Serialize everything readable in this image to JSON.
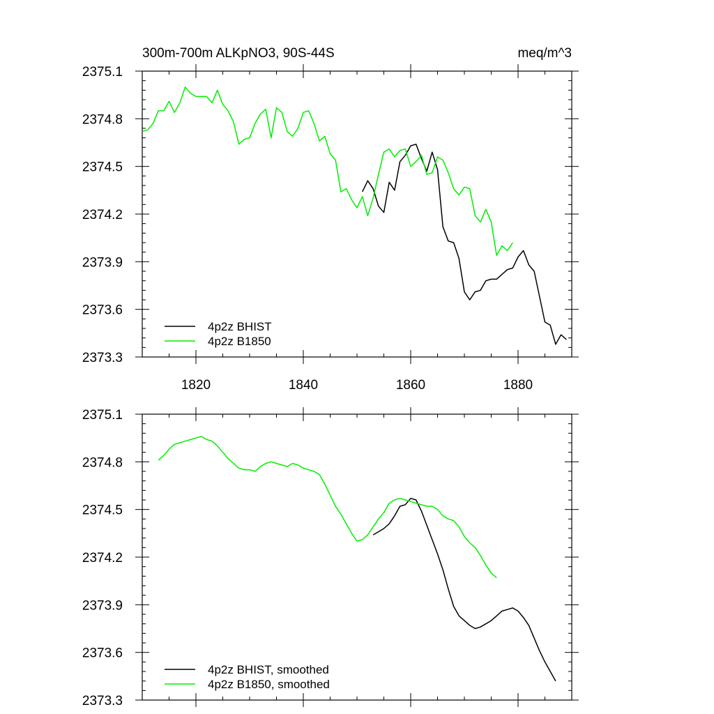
{
  "chart_data": [
    {
      "type": "line",
      "title_left": "300m-700m ALKpNO3, 90S-44S",
      "title_right": "meq/m^3",
      "xlabel": "",
      "ylabel": "",
      "xlim": [
        1810,
        1890
      ],
      "ylim": [
        2373.3,
        2375.1
      ],
      "xticks": [
        1820,
        1840,
        1860,
        1880
      ],
      "xtick_labels": [
        "1820",
        "1840",
        "1860",
        "1880"
      ],
      "yticks": [
        2373.3,
        2373.6,
        2373.9,
        2374.2,
        2374.5,
        2374.8,
        2375.1
      ],
      "ytick_labels": [
        "2373.3",
        "2373.6",
        "2373.9",
        "2374.2",
        "2374.5",
        "2374.8",
        "2375.1"
      ],
      "show_xtick_labels": true,
      "legend_position": "bottom-left",
      "grid": false,
      "series": [
        {
          "name": "4p2z BHIST",
          "color": "#000000",
          "x": [
            1851,
            1852,
            1853,
            1854,
            1855,
            1856,
            1857,
            1858,
            1859,
            1860,
            1861,
            1862,
            1863,
            1864,
            1865,
            1866,
            1867,
            1868,
            1869,
            1870,
            1871,
            1872,
            1873,
            1874,
            1875,
            1876,
            1877,
            1878,
            1879,
            1880,
            1881,
            1882,
            1883,
            1884,
            1885,
            1886,
            1887,
            1888,
            1889
          ],
          "y": [
            2374.34,
            2374.41,
            2374.36,
            2374.25,
            2374.21,
            2374.4,
            2374.35,
            2374.53,
            2374.57,
            2374.63,
            2374.64,
            2374.55,
            2374.47,
            2374.59,
            2374.48,
            2374.12,
            2374.03,
            2374.02,
            2373.92,
            2373.71,
            2373.66,
            2373.71,
            2373.72,
            2373.78,
            2373.79,
            2373.79,
            2373.82,
            2373.85,
            2373.86,
            2373.93,
            2373.97,
            2373.88,
            2373.84,
            2373.68,
            2373.52,
            2373.5,
            2373.38,
            2373.44,
            2373.41
          ]
        },
        {
          "name": "4p2z B1850",
          "color": "#00ee00",
          "x": [
            1810,
            1811,
            1812,
            1813,
            1814,
            1815,
            1816,
            1817,
            1818,
            1819,
            1820,
            1821,
            1822,
            1823,
            1824,
            1825,
            1826,
            1827,
            1828,
            1829,
            1830,
            1831,
            1832,
            1833,
            1834,
            1835,
            1836,
            1837,
            1838,
            1839,
            1840,
            1841,
            1842,
            1843,
            1844,
            1845,
            1846,
            1847,
            1848,
            1849,
            1850,
            1851,
            1852,
            1853,
            1854,
            1855,
            1856,
            1857,
            1858,
            1859,
            1860,
            1861,
            1862,
            1863,
            1864,
            1865,
            1866,
            1867,
            1868,
            1869,
            1870,
            1871,
            1872,
            1873,
            1874,
            1875,
            1876,
            1877,
            1878,
            1879
          ],
          "y": [
            2374.72,
            2374.73,
            2374.77,
            2374.85,
            2374.85,
            2374.91,
            2374.84,
            2374.9,
            2375.0,
            2374.96,
            2374.94,
            2374.94,
            2374.94,
            2374.9,
            2374.98,
            2374.89,
            2374.85,
            2374.78,
            2374.64,
            2374.67,
            2374.68,
            2374.77,
            2374.83,
            2374.86,
            2374.68,
            2374.87,
            2374.84,
            2374.72,
            2374.69,
            2374.74,
            2374.84,
            2374.85,
            2374.77,
            2374.66,
            2374.69,
            2374.58,
            2374.54,
            2374.34,
            2374.36,
            2374.29,
            2374.24,
            2374.31,
            2374.19,
            2374.3,
            2374.45,
            2374.59,
            2374.61,
            2374.56,
            2374.6,
            2374.61,
            2374.5,
            2374.53,
            2374.57,
            2374.45,
            2374.46,
            2374.56,
            2374.54,
            2374.46,
            2374.36,
            2374.32,
            2374.37,
            2374.36,
            2374.19,
            2374.15,
            2374.23,
            2374.15,
            2373.94,
            2374.0,
            2373.97,
            2374.02
          ]
        }
      ]
    },
    {
      "type": "line",
      "title_left": "",
      "title_right": "",
      "xlabel": "",
      "ylabel": "",
      "xlim": [
        1810,
        1890
      ],
      "ylim": [
        2373.3,
        2375.1
      ],
      "xticks": [
        1820,
        1840,
        1860,
        1880
      ],
      "xtick_labels": [],
      "yticks": [
        2373.3,
        2373.6,
        2373.9,
        2374.2,
        2374.5,
        2374.8,
        2375.1
      ],
      "ytick_labels": [
        "2373.3",
        "2373.6",
        "2373.9",
        "2374.2",
        "2374.5",
        "2374.8",
        "2375.1"
      ],
      "show_xtick_labels": false,
      "legend_position": "bottom-left",
      "grid": false,
      "series": [
        {
          "name": "4p2z BHIST, smoothed",
          "color": "#000000",
          "x": [
            1853,
            1854,
            1855,
            1856,
            1857,
            1858,
            1859,
            1860,
            1861,
            1862,
            1863,
            1864,
            1865,
            1866,
            1867,
            1868,
            1869,
            1870,
            1871,
            1872,
            1873,
            1874,
            1875,
            1876,
            1877,
            1878,
            1879,
            1880,
            1881,
            1882,
            1883,
            1884,
            1885,
            1886,
            1887
          ],
          "y": [
            2374.34,
            2374.36,
            2374.38,
            2374.41,
            2374.46,
            2374.52,
            2374.53,
            2374.57,
            2374.56,
            2374.49,
            2374.4,
            2374.31,
            2374.22,
            2374.12,
            2374.0,
            2373.89,
            2373.83,
            2373.8,
            2373.77,
            2373.75,
            2373.76,
            2373.78,
            2373.8,
            2373.83,
            2373.86,
            2373.87,
            2373.88,
            2373.86,
            2373.82,
            2373.77,
            2373.69,
            2373.61,
            2373.54,
            2373.48,
            2373.42
          ]
        },
        {
          "name": "4p2z B1850, smoothed",
          "color": "#00ee00",
          "x": [
            1813,
            1814,
            1815,
            1816,
            1817,
            1818,
            1819,
            1820,
            1821,
            1822,
            1823,
            1824,
            1825,
            1826,
            1827,
            1828,
            1829,
            1830,
            1831,
            1832,
            1833,
            1834,
            1835,
            1836,
            1837,
            1838,
            1839,
            1840,
            1841,
            1842,
            1843,
            1844,
            1845,
            1846,
            1847,
            1848,
            1849,
            1850,
            1851,
            1852,
            1853,
            1854,
            1855,
            1856,
            1857,
            1858,
            1859,
            1860,
            1861,
            1862,
            1863,
            1864,
            1865,
            1866,
            1867,
            1868,
            1869,
            1870,
            1871,
            1872,
            1873,
            1874,
            1875,
            1876
          ],
          "y": [
            2374.81,
            2374.84,
            2374.88,
            2374.91,
            2374.92,
            2374.93,
            2374.94,
            2374.95,
            2374.96,
            2374.94,
            2374.93,
            2374.9,
            2374.86,
            2374.82,
            2374.79,
            2374.76,
            2374.75,
            2374.75,
            2374.74,
            2374.77,
            2374.79,
            2374.8,
            2374.79,
            2374.78,
            2374.77,
            2374.79,
            2374.78,
            2374.76,
            2374.75,
            2374.74,
            2374.72,
            2374.66,
            2374.59,
            2374.52,
            2374.47,
            2374.41,
            2374.35,
            2374.3,
            2374.31,
            2374.34,
            2374.39,
            2374.44,
            2374.48,
            2374.54,
            2374.56,
            2374.57,
            2374.56,
            2374.55,
            2374.54,
            2374.53,
            2374.52,
            2374.52,
            2374.5,
            2374.46,
            2374.44,
            2374.43,
            2374.39,
            2374.33,
            2374.29,
            2374.26,
            2374.21,
            2374.15,
            2374.1,
            2374.07
          ]
        }
      ]
    }
  ]
}
